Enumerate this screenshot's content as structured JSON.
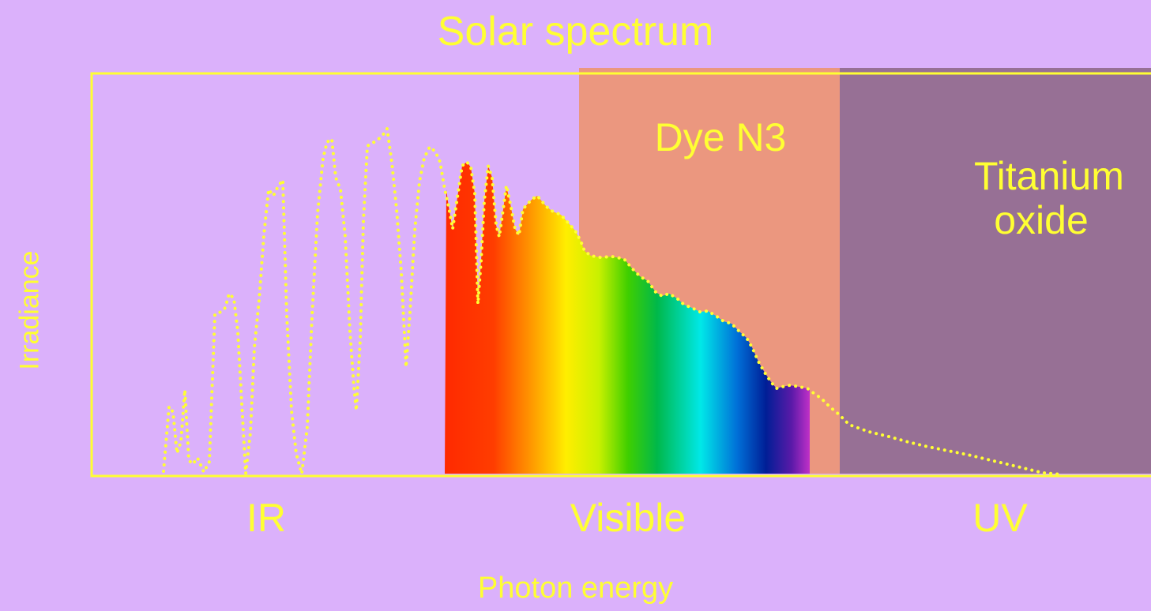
{
  "chart_data": {
    "type": "area",
    "title": "Solar spectrum",
    "xlabel": "Photon energy",
    "ylabel": "Irradiance",
    "colors": {
      "background": "#dbb1fb",
      "axis": "#ffff33",
      "dye_band": "#eb977f",
      "tio2_band": "#977095",
      "curve": "#ffff33"
    },
    "regions": [
      {
        "name": "IR"
      },
      {
        "name": "Visible"
      },
      {
        "name": "UV"
      }
    ],
    "absorption_bands": [
      {
        "name": "Dye N3"
      },
      {
        "name": "Titanium oxide"
      }
    ],
    "spectrum_fill": "visible-rainbow",
    "curve_style": "dotted"
  }
}
